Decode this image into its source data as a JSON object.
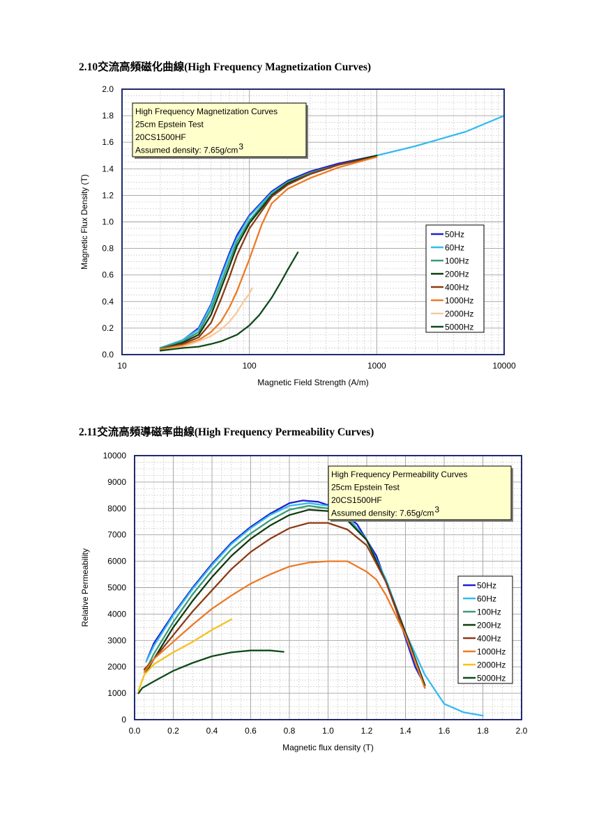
{
  "page": {
    "heading1": "2.10交流高頻磁化曲線(High Frequency Magnetization Curves)",
    "heading2": "2.11交流高頻導磁率曲線(High Frequency Permeability Curves)"
  },
  "chart_data": [
    {
      "type": "line",
      "xscale": "log",
      "xlabel": "Magnetic Field Strength (A/m)",
      "ylabel": "Magnetic Flux Density (T)",
      "xlim": [
        10,
        10000
      ],
      "ylim": [
        0,
        2.0
      ],
      "xticks": [
        10,
        100,
        1000,
        10000
      ],
      "yticks": [
        "0.0",
        "0.2",
        "0.4",
        "0.6",
        "0.8",
        "1.0",
        "1.2",
        "1.4",
        "1.6",
        "1.8",
        "2.0"
      ],
      "grid": true,
      "legend_position": "right",
      "note": [
        "High Frequency Magnetization Curves",
        "25cm Epstein Test",
        "20CS1500HF",
        "Assumed density: 7.65g/cm"
      ],
      "note_superscript": "3",
      "series": [
        {
          "name": "50Hz",
          "color": "#1f1fd0",
          "points": [
            [
              20,
              0.05
            ],
            [
              30,
              0.11
            ],
            [
              40,
              0.2
            ],
            [
              50,
              0.38
            ],
            [
              60,
              0.6
            ],
            [
              70,
              0.77
            ],
            [
              80,
              0.9
            ],
            [
              100,
              1.05
            ],
            [
              150,
              1.23
            ],
            [
              200,
              1.31
            ],
            [
              300,
              1.38
            ],
            [
              500,
              1.44
            ],
            [
              1000,
              1.5
            ]
          ]
        },
        {
          "name": "60Hz",
          "color": "#33bbee",
          "points": [
            [
              20,
              0.05
            ],
            [
              30,
              0.11
            ],
            [
              40,
              0.19
            ],
            [
              50,
              0.37
            ],
            [
              60,
              0.58
            ],
            [
              70,
              0.75
            ],
            [
              80,
              0.88
            ],
            [
              100,
              1.04
            ],
            [
              150,
              1.22
            ],
            [
              200,
              1.3
            ],
            [
              300,
              1.37
            ],
            [
              500,
              1.43
            ],
            [
              1000,
              1.5
            ],
            [
              2000,
              1.57
            ],
            [
              5000,
              1.68
            ],
            [
              10000,
              1.8
            ]
          ]
        },
        {
          "name": "100Hz",
          "color": "#3a9a78",
          "points": [
            [
              20,
              0.05
            ],
            [
              30,
              0.1
            ],
            [
              40,
              0.17
            ],
            [
              50,
              0.34
            ],
            [
              60,
              0.54
            ],
            [
              70,
              0.71
            ],
            [
              80,
              0.85
            ],
            [
              100,
              1.01
            ],
            [
              150,
              1.21
            ],
            [
              200,
              1.3
            ],
            [
              300,
              1.37
            ],
            [
              500,
              1.43
            ],
            [
              1000,
              1.5
            ]
          ]
        },
        {
          "name": "200Hz",
          "color": "#0f3a0f",
          "points": [
            [
              20,
              0.04
            ],
            [
              30,
              0.09
            ],
            [
              40,
              0.15
            ],
            [
              50,
              0.3
            ],
            [
              60,
              0.5
            ],
            [
              70,
              0.67
            ],
            [
              80,
              0.82
            ],
            [
              100,
              0.99
            ],
            [
              150,
              1.2
            ],
            [
              200,
              1.29
            ],
            [
              300,
              1.36
            ],
            [
              500,
              1.43
            ],
            [
              1000,
              1.5
            ]
          ]
        },
        {
          "name": "400Hz",
          "color": "#8b3a14",
          "points": [
            [
              20,
              0.04
            ],
            [
              30,
              0.08
            ],
            [
              40,
              0.13
            ],
            [
              50,
              0.24
            ],
            [
              60,
              0.42
            ],
            [
              70,
              0.59
            ],
            [
              80,
              0.75
            ],
            [
              100,
              0.95
            ],
            [
              150,
              1.19
            ],
            [
              200,
              1.28
            ],
            [
              300,
              1.36
            ],
            [
              500,
              1.43
            ],
            [
              1000,
              1.49
            ]
          ]
        },
        {
          "name": "1000Hz",
          "color": "#ec7a27",
          "points": [
            [
              20,
              0.04
            ],
            [
              30,
              0.07
            ],
            [
              40,
              0.11
            ],
            [
              50,
              0.17
            ],
            [
              60,
              0.25
            ],
            [
              70,
              0.36
            ],
            [
              80,
              0.48
            ],
            [
              100,
              0.72
            ],
            [
              125,
              0.98
            ],
            [
              150,
              1.14
            ],
            [
              200,
              1.25
            ],
            [
              300,
              1.33
            ],
            [
              500,
              1.41
            ],
            [
              1000,
              1.49
            ]
          ]
        },
        {
          "name": "2000Hz",
          "color": "#f8c99a",
          "points": [
            [
              20,
              0.03
            ],
            [
              30,
              0.06
            ],
            [
              40,
              0.1
            ],
            [
              50,
              0.14
            ],
            [
              60,
              0.19
            ],
            [
              70,
              0.25
            ],
            [
              80,
              0.32
            ],
            [
              90,
              0.4
            ],
            [
              100,
              0.46
            ],
            [
              105,
              0.5
            ]
          ]
        },
        {
          "name": "5000Hz",
          "color": "#0f4a1a",
          "points": [
            [
              20,
              0.03
            ],
            [
              30,
              0.05
            ],
            [
              40,
              0.06
            ],
            [
              50,
              0.08
            ],
            [
              60,
              0.1
            ],
            [
              80,
              0.15
            ],
            [
              100,
              0.22
            ],
            [
              120,
              0.3
            ],
            [
              150,
              0.43
            ],
            [
              180,
              0.56
            ],
            [
              200,
              0.64
            ],
            [
              240,
              0.77
            ]
          ]
        }
      ]
    },
    {
      "type": "line",
      "xlabel": "Magnetic flux density (T)",
      "ylabel": "Relative Permeability",
      "xlim": [
        0,
        2.0
      ],
      "ylim": [
        0,
        10000
      ],
      "xticks": [
        "0.0",
        "0.2",
        "0.4",
        "0.6",
        "0.8",
        "1.0",
        "1.2",
        "1.4",
        "1.6",
        "1.8",
        "2.0"
      ],
      "yticks": [
        "0",
        "1000",
        "2000",
        "3000",
        "4000",
        "5000",
        "6000",
        "7000",
        "8000",
        "9000",
        "10000"
      ],
      "grid": true,
      "legend_position": "right",
      "note": [
        "High Frequency Permeability Curves",
        "25cm Epstein Test",
        "20CS1500HF",
        "Assumed density: 7.65g/cm"
      ],
      "note_superscript": "3",
      "series": [
        {
          "name": "50Hz",
          "color": "#1f1fd0",
          "points": [
            [
              0.06,
              2200
            ],
            [
              0.1,
              2900
            ],
            [
              0.2,
              4000
            ],
            [
              0.3,
              5000
            ],
            [
              0.4,
              5900
            ],
            [
              0.5,
              6700
            ],
            [
              0.6,
              7300
            ],
            [
              0.7,
              7800
            ],
            [
              0.8,
              8200
            ],
            [
              0.87,
              8300
            ],
            [
              0.95,
              8250
            ],
            [
              1.05,
              8000
            ],
            [
              1.15,
              7400
            ],
            [
              1.25,
              6200
            ],
            [
              1.35,
              4200
            ],
            [
              1.45,
              2000
            ],
            [
              1.5,
              1300
            ]
          ]
        },
        {
          "name": "60Hz",
          "color": "#33bbee",
          "points": [
            [
              0.06,
              2200
            ],
            [
              0.1,
              2800
            ],
            [
              0.2,
              3950
            ],
            [
              0.3,
              4950
            ],
            [
              0.4,
              5850
            ],
            [
              0.5,
              6650
            ],
            [
              0.6,
              7250
            ],
            [
              0.7,
              7750
            ],
            [
              0.8,
              8100
            ],
            [
              0.9,
              8200
            ],
            [
              1.0,
              8100
            ],
            [
              1.1,
              7700
            ],
            [
              1.2,
              6800
            ],
            [
              1.3,
              5300
            ],
            [
              1.4,
              3300
            ],
            [
              1.5,
              1700
            ],
            [
              1.6,
              600
            ],
            [
              1.7,
              280
            ],
            [
              1.8,
              150
            ]
          ]
        },
        {
          "name": "100Hz",
          "color": "#3a9a78",
          "points": [
            [
              0.06,
              1900
            ],
            [
              0.1,
              2500
            ],
            [
              0.2,
              3700
            ],
            [
              0.3,
              4750
            ],
            [
              0.4,
              5650
            ],
            [
              0.5,
              6450
            ],
            [
              0.6,
              7050
            ],
            [
              0.7,
              7550
            ],
            [
              0.8,
              7950
            ],
            [
              0.9,
              8100
            ],
            [
              1.0,
              8000
            ],
            [
              1.1,
              7600
            ],
            [
              1.2,
              6800
            ],
            [
              1.3,
              5200
            ],
            [
              1.4,
              3300
            ],
            [
              1.5,
              1300
            ]
          ]
        },
        {
          "name": "200Hz",
          "color": "#0f3a0f",
          "points": [
            [
              0.06,
              1800
            ],
            [
              0.1,
              2300
            ],
            [
              0.2,
              3500
            ],
            [
              0.3,
              4500
            ],
            [
              0.4,
              5400
            ],
            [
              0.5,
              6200
            ],
            [
              0.6,
              6850
            ],
            [
              0.7,
              7350
            ],
            [
              0.8,
              7750
            ],
            [
              0.9,
              7950
            ],
            [
              1.0,
              7900
            ],
            [
              1.1,
              7550
            ],
            [
              1.2,
              6800
            ],
            [
              1.3,
              5200
            ],
            [
              1.4,
              3300
            ],
            [
              1.5,
              1300
            ]
          ]
        },
        {
          "name": "400Hz",
          "color": "#8b3a14",
          "points": [
            [
              0.05,
              1900
            ],
            [
              0.1,
              2300
            ],
            [
              0.2,
              3200
            ],
            [
              0.3,
              4100
            ],
            [
              0.4,
              4900
            ],
            [
              0.5,
              5700
            ],
            [
              0.6,
              6350
            ],
            [
              0.7,
              6850
            ],
            [
              0.8,
              7250
            ],
            [
              0.9,
              7450
            ],
            [
              1.0,
              7450
            ],
            [
              1.1,
              7200
            ],
            [
              1.2,
              6600
            ],
            [
              1.3,
              5200
            ],
            [
              1.4,
              3200
            ],
            [
              1.5,
              1200
            ]
          ]
        },
        {
          "name": "1000Hz",
          "color": "#ec7a27",
          "points": [
            [
              0.05,
              1800
            ],
            [
              0.1,
              2300
            ],
            [
              0.2,
              2950
            ],
            [
              0.3,
              3600
            ],
            [
              0.4,
              4200
            ],
            [
              0.5,
              4700
            ],
            [
              0.6,
              5150
            ],
            [
              0.7,
              5500
            ],
            [
              0.8,
              5800
            ],
            [
              0.9,
              5950
            ],
            [
              1.0,
              6000
            ],
            [
              1.1,
              6000
            ],
            [
              1.2,
              5600
            ],
            [
              1.25,
              5300
            ],
            [
              1.3,
              4700
            ],
            [
              1.4,
              3200
            ],
            [
              1.5,
              1200
            ]
          ]
        },
        {
          "name": "2000Hz",
          "color": "#f5c21b",
          "points": [
            [
              0.02,
              1100
            ],
            [
              0.05,
              1700
            ],
            [
              0.1,
              2100
            ],
            [
              0.2,
              2550
            ],
            [
              0.3,
              2950
            ],
            [
              0.4,
              3400
            ],
            [
              0.5,
              3800
            ]
          ]
        },
        {
          "name": "5000Hz",
          "color": "#0f4a1a",
          "points": [
            [
              0.02,
              1000
            ],
            [
              0.04,
              1200
            ],
            [
              0.1,
              1450
            ],
            [
              0.2,
              1850
            ],
            [
              0.3,
              2150
            ],
            [
              0.4,
              2400
            ],
            [
              0.5,
              2550
            ],
            [
              0.6,
              2620
            ],
            [
              0.7,
              2620
            ],
            [
              0.77,
              2570
            ]
          ]
        }
      ]
    }
  ]
}
